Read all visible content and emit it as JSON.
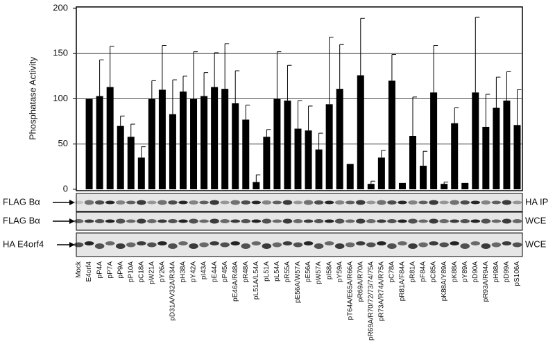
{
  "chart_data": {
    "type": "bar",
    "y_label": "Phosphatase Activity",
    "categories": [
      "Mock",
      "E4orf4",
      "pP4A",
      "pP7A",
      "pP9A",
      "pP10A",
      "pC18A",
      "pW21A",
      "pY26A",
      "pD31A/V32A/R34A",
      "pH38A",
      "pY42A",
      "pI43A",
      "pE44A",
      "pP45A",
      "pE46A/R48A",
      "pR48A",
      "pL51A/L54A",
      "pL51A",
      "pL54A",
      "pR55A",
      "pE56A/W57A",
      "pE56A",
      "pW57A",
      "pI58A",
      "pY59A",
      "pT64A/E65A/R66A",
      "pR69A/R70A",
      "pR69A/R70/72/73/74/75A",
      "pR73A/R74A/R75A",
      "pC78A",
      "pR81A/F84A",
      "pR81A",
      "pF84A",
      "pC85A",
      "pK88A/Y89A",
      "pK88A",
      "pY89A",
      "pD90A",
      "pR93A/R94A",
      "pH98A",
      "pD99A",
      "pS106A"
    ],
    "values": [
      null,
      100,
      103,
      113,
      70,
      58,
      35,
      100,
      110,
      83,
      108,
      100,
      103,
      113,
      111,
      95,
      77,
      8,
      58,
      100,
      98,
      67,
      65,
      44,
      94,
      111,
      28,
      126,
      6,
      35,
      120,
      7,
      59,
      26,
      107,
      6,
      73,
      7,
      107,
      69,
      90,
      98,
      71
    ],
    "errors": [
      null,
      null,
      40,
      45,
      11,
      14,
      12,
      20,
      49,
      38,
      17,
      52,
      26,
      38,
      50,
      36,
      16,
      8,
      8,
      52,
      39,
      31,
      27,
      18,
      74,
      49,
      null,
      63,
      3,
      8,
      29,
      null,
      43,
      16,
      52,
      2,
      17,
      null,
      83,
      36,
      34,
      32,
      39
    ],
    "color": "#000000",
    "ylim": [
      0,
      200
    ],
    "yticks": [
      0,
      50,
      100,
      150,
      200
    ],
    "grid": true,
    "blots": [
      {
        "left_label": "FLAG Bα",
        "right_label": "HA IP"
      },
      {
        "left_label": "FLAG Bα",
        "right_label": "WCE"
      },
      {
        "left_label": "HA E4orf4",
        "right_label": "WCE"
      }
    ]
  }
}
